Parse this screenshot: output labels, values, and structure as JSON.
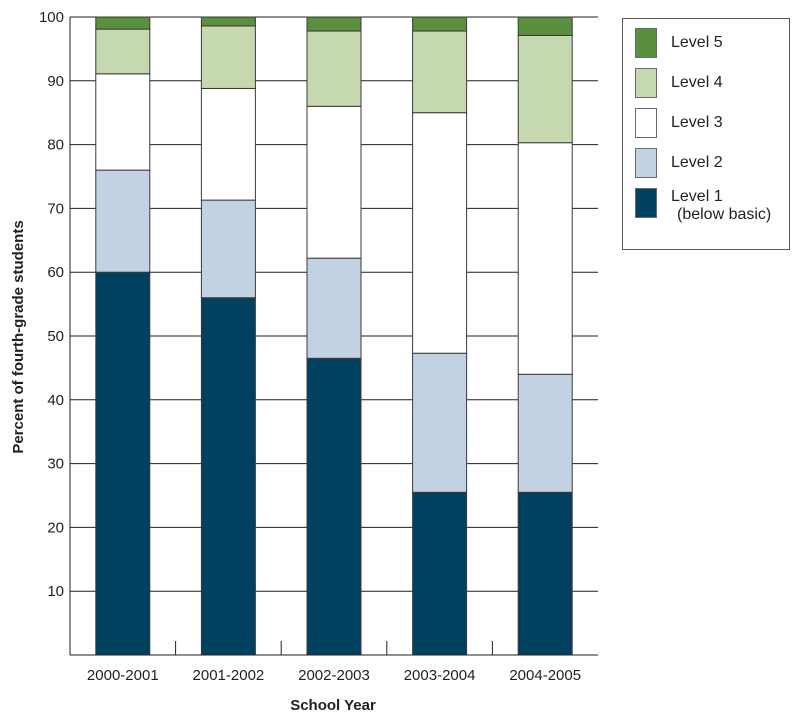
{
  "chart_data": {
    "type": "bar",
    "stacked": true,
    "categories": [
      "2000-2001",
      "2001-2002",
      "2002-2003",
      "2003-2004",
      "2004-2005"
    ],
    "series": [
      {
        "name": "Level 1",
        "name_sub": "(below basic)",
        "color": "#00415f",
        "values": [
          60,
          56,
          46.5,
          25.5,
          25.5
        ]
      },
      {
        "name": "Level 2",
        "color": "#c2d2e2",
        "values": [
          16,
          15.3,
          15.7,
          21.8,
          18.5
        ]
      },
      {
        "name": "Level 3",
        "color": "#ffffff",
        "values": [
          15.1,
          17.5,
          23.8,
          37.7,
          36.3
        ]
      },
      {
        "name": "Level 4",
        "color": "#c6d8b0",
        "values": [
          7,
          9.8,
          11.8,
          12.8,
          16.8
        ]
      },
      {
        "name": "Level 5",
        "color": "#5a8f3e",
        "values": [
          1.9,
          1.4,
          2.2,
          2.2,
          2.9
        ]
      }
    ],
    "title": "",
    "xlabel": "School Year",
    "ylabel": "Percent of fourth-grade students",
    "ylim": [
      0,
      100
    ],
    "yticks": [
      10,
      20,
      30,
      40,
      50,
      60,
      70,
      80,
      90,
      100
    ],
    "grid": true,
    "legend_position": "top-right"
  }
}
